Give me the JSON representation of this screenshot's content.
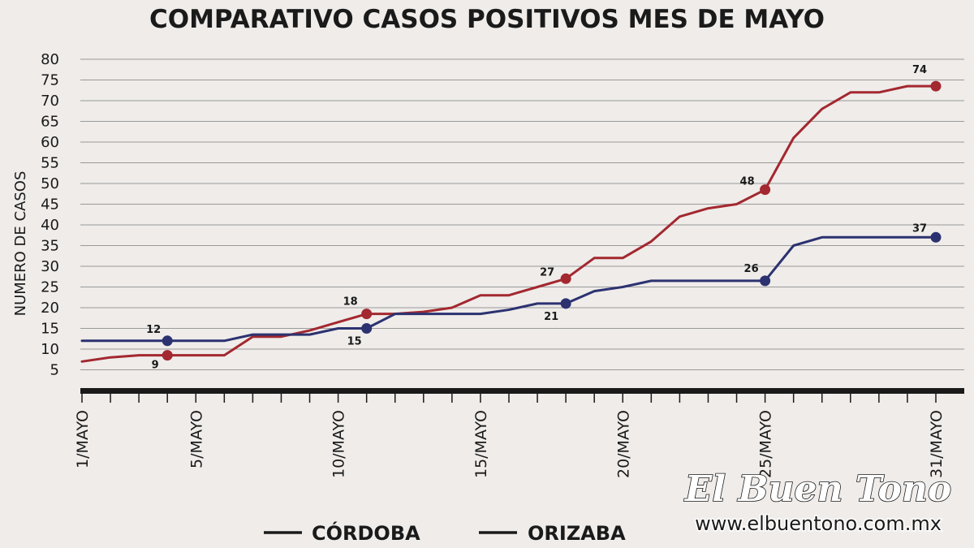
{
  "chart_data": {
    "type": "line",
    "title": "COMPARATIVO CASOS POSITIVOS MES DE MAYO",
    "ylabel": "NUMERO DE CASOS",
    "ylim": [
      0,
      80
    ],
    "y_ticks": [
      5,
      10,
      15,
      20,
      25,
      30,
      35,
      40,
      45,
      50,
      55,
      60,
      65,
      70,
      75,
      80
    ],
    "x": [
      1,
      2,
      3,
      4,
      5,
      6,
      7,
      8,
      9,
      10,
      11,
      12,
      13,
      14,
      15,
      16,
      17,
      18,
      19,
      20,
      21,
      22,
      23,
      24,
      25,
      26,
      27,
      28,
      29,
      30,
      31
    ],
    "x_tick_labels": [
      {
        "day": 1,
        "label": "1/MAYO"
      },
      {
        "day": 5,
        "label": "5/MAYO"
      },
      {
        "day": 10,
        "label": "10/MAYO"
      },
      {
        "day": 15,
        "label": "15/MAYO"
      },
      {
        "day": 20,
        "label": "20/MAYO"
      },
      {
        "day": 25,
        "label": "25/MAYO"
      },
      {
        "day": 31,
        "label": "31/MAYO"
      }
    ],
    "series": [
      {
        "name": "CÓRDOBA",
        "color": "#a3282f",
        "values": [
          7,
          8,
          8.5,
          8.5,
          8.5,
          8.5,
          13,
          13,
          14.5,
          16.5,
          18.5,
          18.5,
          19,
          20,
          23,
          23,
          25,
          27,
          32,
          32,
          36,
          42,
          44,
          45,
          48.5,
          61,
          68,
          72,
          72,
          73.5,
          73.5
        ],
        "markers": [
          {
            "day": 4,
            "label": "9"
          },
          {
            "day": 11,
            "label": "18"
          },
          {
            "day": 18,
            "label": "27"
          },
          {
            "day": 25,
            "label": "48"
          },
          {
            "day": 31,
            "label": "74"
          }
        ]
      },
      {
        "name": "ORIZABA",
        "color": "#2c3270",
        "values": [
          12,
          12,
          12,
          12,
          12,
          12,
          13.5,
          13.5,
          13.5,
          15,
          15,
          18.5,
          18.5,
          18.5,
          18.5,
          19.5,
          21,
          21,
          24,
          25,
          26.5,
          26.5,
          26.5,
          26.5,
          26.5,
          35,
          37,
          37,
          37,
          37,
          37
        ],
        "markers": [
          {
            "day": 4,
            "label": "12"
          },
          {
            "day": 11,
            "label": "15"
          },
          {
            "day": 18,
            "label": "21"
          },
          {
            "day": 25,
            "label": "26"
          },
          {
            "day": 31,
            "label": "37"
          }
        ]
      }
    ],
    "grid": true,
    "legend": "bottom-center",
    "legend_color": "#1a1a1a"
  },
  "watermark": {
    "name": "El Buen Tono",
    "url": "www.elbuentono.com.mx"
  }
}
